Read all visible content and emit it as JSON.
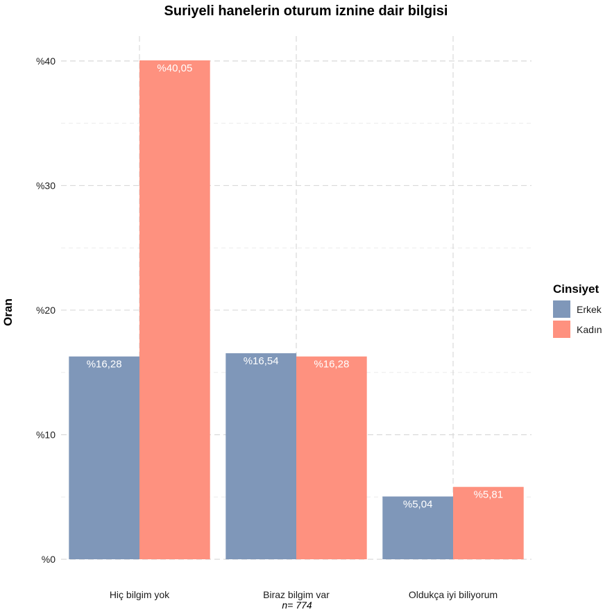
{
  "chart_data": {
    "type": "bar",
    "title": "Suriyeli hanelerin oturum iznine dair bilgisi",
    "xlabel": "",
    "ylabel": "Oran",
    "caption": "n= 774",
    "categories": [
      "Hiç bilgim yok",
      "Biraz bilgim var",
      "Oldukça iyi biliyorum"
    ],
    "series": [
      {
        "name": "Erkek",
        "color": "#7f97b9",
        "values": [
          16.28,
          16.54,
          5.04
        ],
        "labels": [
          "%16,28",
          "%16,54",
          "%5,04"
        ]
      },
      {
        "name": "Kadın",
        "color": "#fe917f",
        "values": [
          40.05,
          16.28,
          5.81
        ],
        "labels": [
          "%40,05",
          "%16,28",
          "%5,81"
        ]
      }
    ],
    "ylim": [
      0,
      42
    ],
    "yticks": [
      0,
      10,
      20,
      30,
      40
    ],
    "ytick_labels": [
      "%0",
      "%10",
      "%20",
      "%30",
      "%40"
    ],
    "legend": {
      "title": "Cinsiyet",
      "placement": "right"
    },
    "grid": true
  }
}
